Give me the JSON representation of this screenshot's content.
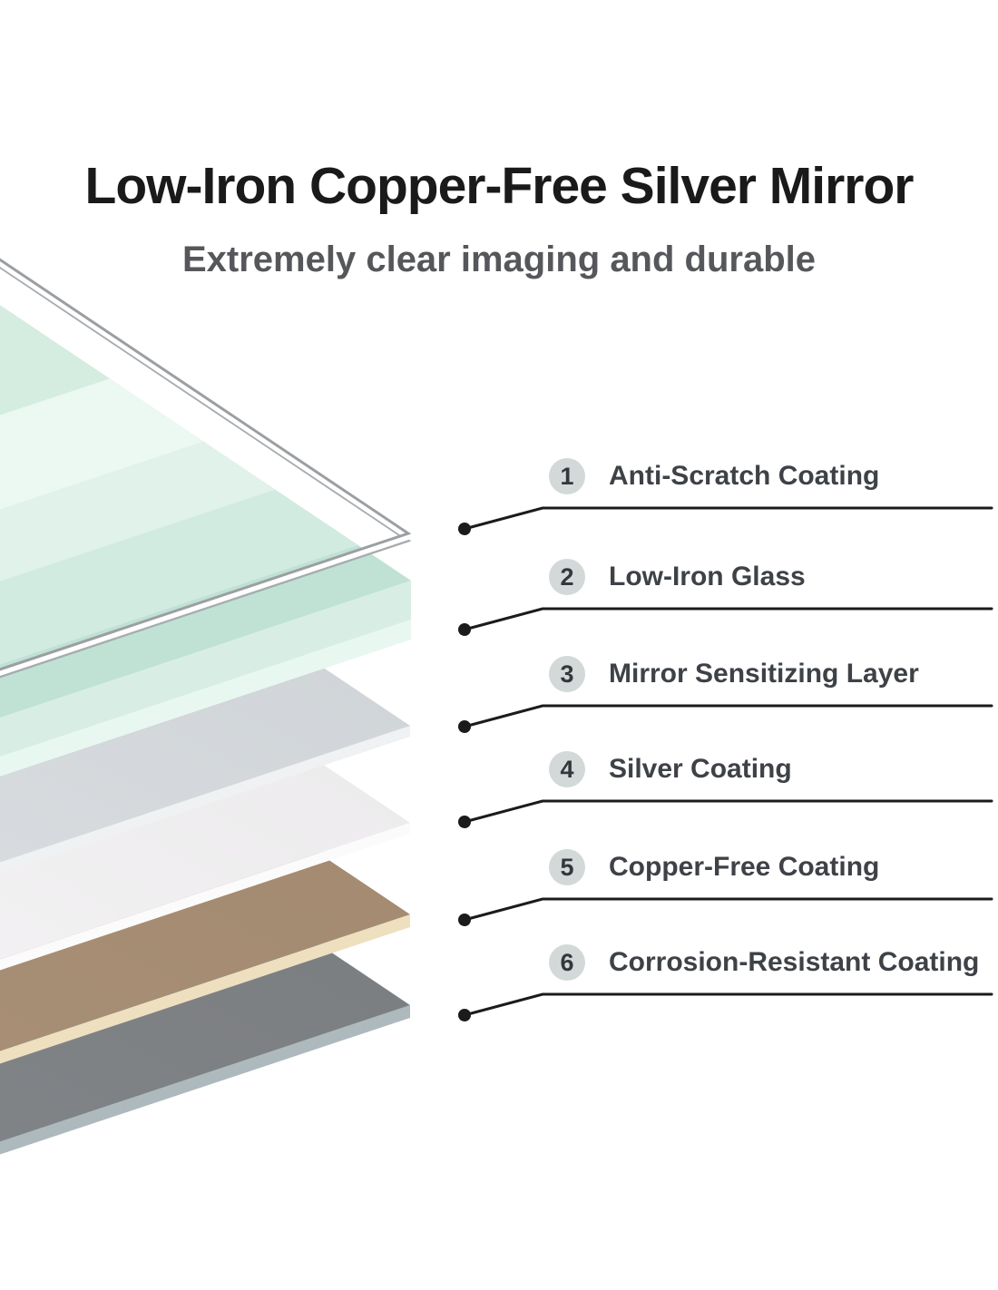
{
  "header": {
    "title": "Low-Iron Copper-Free Silver Mirror",
    "subtitle": "Extremely clear imaging and durable"
  },
  "callouts": [
    {
      "number": "1",
      "label": "Anti-Scratch Coating"
    },
    {
      "number": "2",
      "label": "Low-Iron Glass"
    },
    {
      "number": "3",
      "label": "Mirror Sensitizing Layer"
    },
    {
      "number": "4",
      "label": "Silver Coating"
    },
    {
      "number": "5",
      "label": "Copper-Free Coating"
    },
    {
      "number": "6",
      "label": "Corrosion-Resistant Coating"
    }
  ],
  "layers": [
    {
      "name": "anti-scratch-coating",
      "outline": "#9b9fa2",
      "outline2": "#a7abae",
      "gap": "#ffffff"
    },
    {
      "name": "low-iron-glass",
      "top": "#bfe2d5",
      "bands": [
        "#d2ebe0",
        "#e0f2ea",
        "#ecf8f2",
        "#d5ece1",
        "#c9e7da"
      ],
      "edge_upper": "#d8eee4",
      "edge_lower": "#e9f7f1"
    },
    {
      "name": "mirror-sensitizing-layer",
      "top": "#c9ced2",
      "top2": "#e0e3e6",
      "edge": "#eff1f2"
    },
    {
      "name": "silver-coating",
      "top": "#e7e5e7",
      "top2": "#f9f8f9",
      "edge": "#fcfbfc"
    },
    {
      "name": "copper-free-coating",
      "top": "#9f866c",
      "top2": "#ac947b",
      "edge": "#eee0bf"
    },
    {
      "name": "corrosion-resistant-coating",
      "top": "#77797c",
      "top2": "#868a8d",
      "edge": "#aeb9bd"
    }
  ],
  "colors": {
    "background": "#ffffff",
    "title_text": "#1a1a1a",
    "subtitle_text": "#56575a",
    "label_text": "#3e4247",
    "badge_bg": "#d3d8d9",
    "badge_text": "#34383c",
    "leader_line": "#1a1b1d"
  }
}
